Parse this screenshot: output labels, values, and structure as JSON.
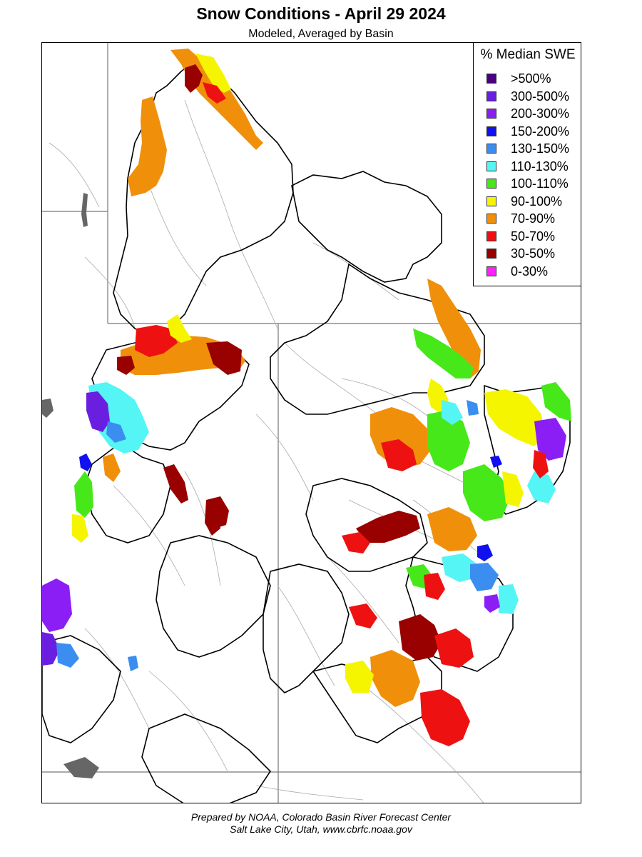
{
  "title": "Snow Conditions - April 29 2024",
  "subtitle": "Modeled, Averaged by Basin",
  "legend": {
    "title": "% Median SWE",
    "items": [
      {
        "label": ">500%",
        "color": "#4b0082"
      },
      {
        "label": "300-500%",
        "color": "#6a1fe0"
      },
      {
        "label": "200-300%",
        "color": "#8a1ef5"
      },
      {
        "label": "150-200%",
        "color": "#1010f0"
      },
      {
        "label": "130-150%",
        "color": "#3b8ef0"
      },
      {
        "label": "110-130%",
        "color": "#55f5f5"
      },
      {
        "label": "100-110%",
        "color": "#46e81a"
      },
      {
        "label": "90-100%",
        "color": "#f5f500"
      },
      {
        "label": "70-90%",
        "color": "#f0900a"
      },
      {
        "label": "50-70%",
        "color": "#ee1111"
      },
      {
        "label": "30-50%",
        "color": "#990000"
      },
      {
        "label": "0-30%",
        "color": "#ff20ff"
      }
    ]
  },
  "credit": {
    "line1": "Prepared by NOAA, Colorado Basin River Forecast Center",
    "line2": "Salt Lake City, Utah, www.cbrfc.noaa.gov"
  },
  "map": {
    "water_color": "#666666",
    "stream_color": "#aaaaaa",
    "state_line_color": "#777777",
    "basin_line_color": "#000000"
  }
}
